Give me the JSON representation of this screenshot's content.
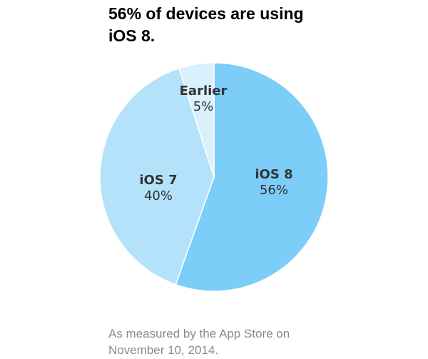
{
  "header": {
    "title_line1": "56% of devices are using",
    "title_line2": "iOS 8."
  },
  "footnote": {
    "line1": "As measured by the App Store on",
    "line2": "November 10, 2014."
  },
  "colors": {
    "ios8": "#7ccdf8",
    "ios7": "#b5e2fb",
    "earlier": "#d9f0fd",
    "separator": "#ffffff",
    "label": "#333333"
  },
  "chart_data": {
    "type": "pie",
    "title": "56% of devices are using iOS 8.",
    "slices": [
      {
        "label": "iOS 8",
        "value": 56,
        "value_label": "56%"
      },
      {
        "label": "iOS 7",
        "value": 40,
        "value_label": "40%"
      },
      {
        "label": "Earlier",
        "value": 5,
        "value_label": "5%"
      }
    ],
    "note": "As measured by the App Store on November 10, 2014."
  }
}
